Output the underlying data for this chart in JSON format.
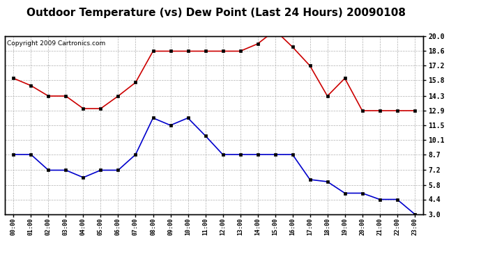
{
  "title": "Outdoor Temperature (vs) Dew Point (Last 24 Hours) 20090108",
  "copyright": "Copyright 2009 Cartronics.com",
  "hours": [
    "00:00",
    "01:00",
    "02:00",
    "03:00",
    "04:00",
    "05:00",
    "06:00",
    "07:00",
    "08:00",
    "09:00",
    "10:00",
    "11:00",
    "12:00",
    "13:00",
    "14:00",
    "15:00",
    "16:00",
    "17:00",
    "18:00",
    "19:00",
    "20:00",
    "21:00",
    "22:00",
    "23:00"
  ],
  "temp": [
    16.0,
    15.3,
    14.3,
    14.3,
    13.1,
    13.1,
    14.3,
    15.6,
    18.6,
    18.6,
    18.6,
    18.6,
    18.6,
    18.6,
    19.3,
    20.6,
    19.0,
    17.2,
    14.3,
    16.0,
    12.9,
    12.9,
    12.9,
    12.9
  ],
  "dewpoint": [
    8.7,
    8.7,
    7.2,
    7.2,
    6.5,
    7.2,
    7.2,
    8.7,
    12.2,
    11.5,
    12.2,
    10.5,
    8.7,
    8.7,
    8.7,
    8.7,
    8.7,
    6.3,
    6.1,
    5.0,
    5.0,
    4.4,
    4.4,
    3.0
  ],
  "ylim": [
    3.0,
    20.0
  ],
  "yticks": [
    3.0,
    4.4,
    5.8,
    7.2,
    8.7,
    10.1,
    11.5,
    12.9,
    14.3,
    15.8,
    17.2,
    18.6,
    20.0
  ],
  "temp_color": "#cc0000",
  "dew_color": "#0000cc",
  "marker_color": "#000000",
  "bg_color": "#ffffff",
  "plot_bg": "#ffffff",
  "grid_color": "#b0b0b0",
  "title_fontsize": 11,
  "copyright_fontsize": 6.5
}
